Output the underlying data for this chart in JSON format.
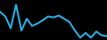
{
  "x": [
    0,
    1,
    2,
    3,
    4,
    5,
    6,
    7,
    8,
    9,
    10,
    11,
    12,
    13,
    14,
    15,
    16,
    17,
    18,
    19,
    20
  ],
  "y": [
    60,
    50,
    25,
    75,
    20,
    45,
    30,
    35,
    42,
    50,
    48,
    52,
    45,
    38,
    20,
    5,
    15,
    5,
    18,
    10,
    8
  ],
  "line_color": "#29aee0",
  "linewidth": 1.5,
  "background_color": "#000000",
  "ylim": [
    0,
    85
  ],
  "xlim": [
    0,
    20
  ]
}
